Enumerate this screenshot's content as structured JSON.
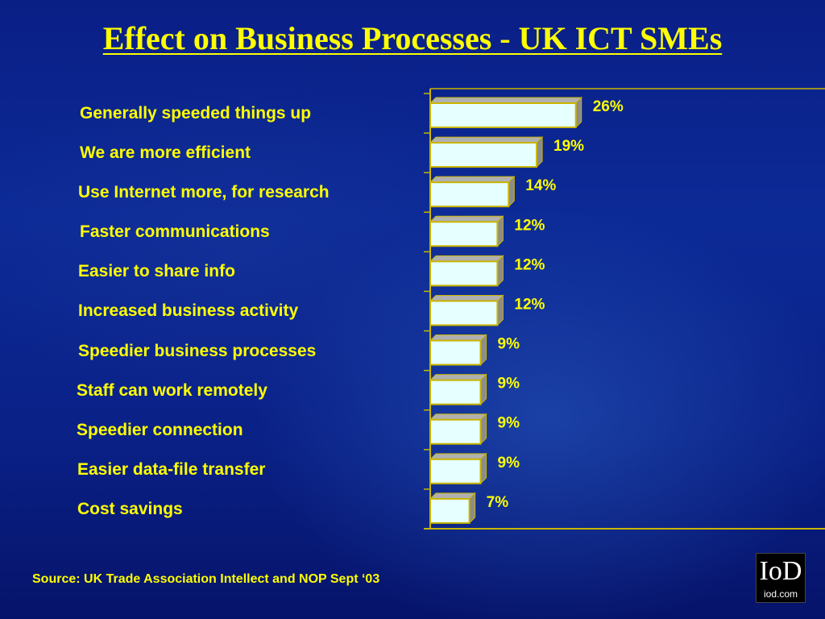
{
  "slide": {
    "title": "Effect on Business Processes - UK ICT SMEs",
    "source": "Source: UK Trade Association Intellect and NOP Sept ‘03",
    "logo_mark": "IoD",
    "logo_text": "iod.com"
  },
  "colors": {
    "background": "#0a2187",
    "text": "#ffff00",
    "bar_front": "#e6ffff",
    "bar_border": "#c8b400",
    "bar_side": "#8c8c8c",
    "axis": "#c8b400"
  },
  "chart_data": {
    "type": "bar",
    "orientation": "horizontal",
    "categories": [
      "Generally speeded things up",
      "We are more efficient",
      "Use Internet more, for research",
      "Faster communications",
      "Easier to share info",
      "Increased business activity",
      "Speedier business processes",
      "Staff can work remotely",
      "Speedier connection",
      "Easier data-file transfer",
      "Cost savings"
    ],
    "values": [
      26,
      19,
      14,
      12,
      12,
      12,
      9,
      9,
      9,
      9,
      7
    ],
    "value_labels": [
      "26%",
      "19%",
      "14%",
      "12%",
      "12%",
      "12%",
      "9%",
      "9%",
      "9%",
      "9%",
      "7%"
    ],
    "unit": "%",
    "title": "Effect on Business Processes - UK ICT SMEs",
    "xlabel": "",
    "ylabel": "",
    "grid": false,
    "legend": "none"
  }
}
